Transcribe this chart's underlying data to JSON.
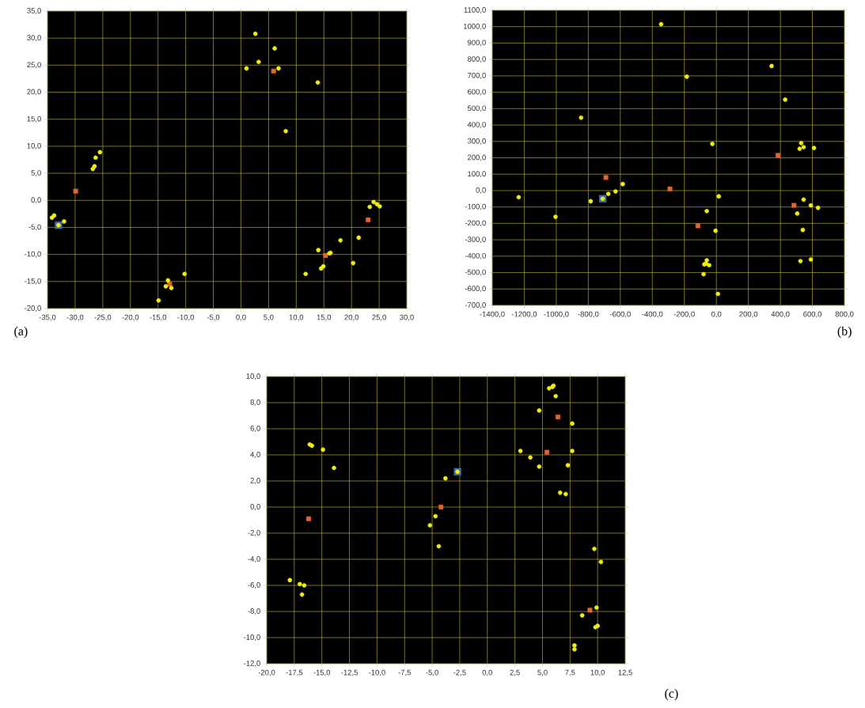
{
  "chart_data": [
    {
      "type": "scatter",
      "annotations": [
        "(a)"
      ],
      "grid": true,
      "xlim": [
        -35,
        30
      ],
      "ylim": [
        -20,
        35
      ],
      "xticks": [
        {
          "value": -35,
          "label": "-35,0"
        },
        {
          "value": -30,
          "label": "-30,0"
        },
        {
          "value": -25,
          "label": "-25,0"
        },
        {
          "value": -20,
          "label": "-20,0"
        },
        {
          "value": -15,
          "label": "-15,0"
        },
        {
          "value": -10,
          "label": "-10,0"
        },
        {
          "value": -5,
          "label": "-5,0"
        },
        {
          "value": 0,
          "label": "0,0"
        },
        {
          "value": 5,
          "label": "5,0"
        },
        {
          "value": 10,
          "label": "10,0"
        },
        {
          "value": 15,
          "label": "15,0"
        },
        {
          "value": 20,
          "label": "20,0"
        },
        {
          "value": 25,
          "label": "25,0"
        },
        {
          "value": 30,
          "label": "30,0"
        }
      ],
      "yticks": [
        {
          "value": -20,
          "label": "-20,0"
        },
        {
          "value": -15,
          "label": "-15,0"
        },
        {
          "value": -10,
          "label": "-10,0"
        },
        {
          "value": -5,
          "label": "-5,0"
        },
        {
          "value": 0,
          "label": "0,0"
        },
        {
          "value": 5,
          "label": "5,0"
        },
        {
          "value": 10,
          "label": "10,0"
        },
        {
          "value": 15,
          "label": "15,0"
        },
        {
          "value": 20,
          "label": "20,0"
        },
        {
          "value": 25,
          "label": "25,0"
        },
        {
          "value": 30,
          "label": "30,0"
        },
        {
          "value": 35,
          "label": "35,0"
        }
      ],
      "series": [
        {
          "color": "#3a6fb0",
          "marker": "square",
          "x": [
            -33.0
          ],
          "values": [
            -4.6
          ]
        },
        {
          "color": "#e8642c",
          "marker": "square",
          "x": [
            -29.9,
            5.9,
            15.3,
            23.0,
            -12.9
          ],
          "values": [
            1.7,
            23.9,
            -10.2,
            -3.6,
            -15.5
          ]
        },
        {
          "color": "#f0f000",
          "marker": "circle",
          "x": [
            -34.2,
            -33.8,
            -33.0,
            -32.0,
            -26.8,
            -26.5,
            -26.3,
            -25.5,
            -14.9,
            -13.6,
            -13.2,
            -12.6,
            -10.2,
            1.0,
            2.6,
            3.2,
            6.1,
            6.8,
            8.1,
            13.9,
            14.0,
            11.7,
            14.5,
            14.9,
            16.0,
            16.2,
            18.0,
            20.3,
            21.3,
            23.3,
            24.0,
            24.6,
            25.1
          ],
          "values": [
            -3.2,
            -2.8,
            -4.6,
            -3.9,
            5.8,
            6.3,
            7.9,
            8.9,
            -18.5,
            -15.9,
            -14.8,
            -16.2,
            -13.6,
            24.4,
            30.8,
            25.6,
            28.1,
            24.4,
            12.8,
            21.8,
            -9.2,
            -13.6,
            -12.6,
            -12.2,
            -9.8,
            -9.7,
            -7.4,
            -11.6,
            -6.9,
            -1.2,
            -0.3,
            -0.7,
            -1.1
          ]
        }
      ]
    },
    {
      "type": "scatter",
      "annotations": [
        "(b)"
      ],
      "grid": true,
      "xlim": [
        -1400,
        800
      ],
      "ylim": [
        -700,
        1100
      ],
      "xticks": [
        {
          "value": -1400,
          "label": "-1400,0"
        },
        {
          "value": -1200,
          "label": "-1200,0"
        },
        {
          "value": -1000,
          "label": "-1000,0"
        },
        {
          "value": -800,
          "label": "-800,0"
        },
        {
          "value": -600,
          "label": "-600,0"
        },
        {
          "value": -400,
          "label": "-400,0"
        },
        {
          "value": -200,
          "label": "-200,0"
        },
        {
          "value": 0,
          "label": "0,0"
        },
        {
          "value": 200,
          "label": "200,0"
        },
        {
          "value": 400,
          "label": "400,0"
        },
        {
          "value": 600,
          "label": "600,0"
        },
        {
          "value": 800,
          "label": "800,0"
        }
      ],
      "yticks": [
        {
          "value": -700,
          "label": "-700,0"
        },
        {
          "value": -600,
          "label": "-600,0"
        },
        {
          "value": -500,
          "label": "-500,0"
        },
        {
          "value": -400,
          "label": "-400,0"
        },
        {
          "value": -300,
          "label": "-300,0"
        },
        {
          "value": -200,
          "label": "-200,0"
        },
        {
          "value": -100,
          "label": "-100,0"
        },
        {
          "value": 0,
          "label": "0,0"
        },
        {
          "value": 100,
          "label": "100,0"
        },
        {
          "value": 200,
          "label": "200,0"
        },
        {
          "value": 300,
          "label": "300,0"
        },
        {
          "value": 400,
          "label": "400,0"
        },
        {
          "value": 500,
          "label": "500,0"
        },
        {
          "value": 600,
          "label": "600,0"
        },
        {
          "value": 700,
          "label": "700,0"
        },
        {
          "value": 800,
          "label": "800,0"
        },
        {
          "value": 900,
          "label": "900,0"
        },
        {
          "value": 1000,
          "label": "1000,0"
        },
        {
          "value": 1100,
          "label": "1100,0"
        }
      ],
      "series": [
        {
          "color": "#3a6fb0",
          "marker": "square",
          "x": [
            -710
          ],
          "values": [
            -50
          ]
        },
        {
          "color": "#e8642c",
          "marker": "square",
          "x": [
            -690,
            -290,
            -115,
            385,
            485
          ],
          "values": [
            80,
            10,
            -215,
            215,
            -90
          ]
        },
        {
          "color": "#f0f000",
          "marker": "circle",
          "x": [
            -1235,
            -1005,
            -845,
            -785,
            -710,
            -675,
            -630,
            -585,
            -345,
            -185,
            -25,
            15,
            -60,
            -5,
            -60,
            -75,
            -65,
            -45,
            -80,
            10,
            345,
            430,
            530,
            520,
            545,
            610,
            545,
            590,
            635,
            505,
            540,
            590,
            525
          ],
          "values": [
            -40,
            -160,
            445,
            -65,
            -50,
            -20,
            -5,
            40,
            1015,
            695,
            285,
            -35,
            -125,
            -245,
            -425,
            -450,
            -445,
            -455,
            -510,
            -630,
            760,
            555,
            290,
            255,
            265,
            260,
            -55,
            -90,
            -105,
            -140,
            -240,
            -420,
            -430
          ]
        }
      ]
    },
    {
      "type": "scatter",
      "annotations": [
        "(c)"
      ],
      "grid": true,
      "xlim": [
        -20,
        12.5
      ],
      "ylim": [
        -12,
        10
      ],
      "xticks": [
        {
          "value": -20,
          "label": "-20,0"
        },
        {
          "value": -17.5,
          "label": "-17,5"
        },
        {
          "value": -15,
          "label": "-15,0"
        },
        {
          "value": -12.5,
          "label": "-12,5"
        },
        {
          "value": -10,
          "label": "-10,0"
        },
        {
          "value": -7.5,
          "label": "-7,5"
        },
        {
          "value": -5,
          "label": "-5,0"
        },
        {
          "value": -2.5,
          "label": "-2,5"
        },
        {
          "value": 0,
          "label": "0,0"
        },
        {
          "value": 2.5,
          "label": "2,5"
        },
        {
          "value": 5,
          "label": "5,0"
        },
        {
          "value": 7.5,
          "label": "7,5"
        },
        {
          "value": 10,
          "label": "10,0"
        },
        {
          "value": 12.5,
          "label": "12,5"
        }
      ],
      "yticks": [
        {
          "value": -12,
          "label": "-12,0"
        },
        {
          "value": -10,
          "label": "-10,0"
        },
        {
          "value": -8,
          "label": "-8,0"
        },
        {
          "value": -6,
          "label": "-6,0"
        },
        {
          "value": -4,
          "label": "-4,0"
        },
        {
          "value": -2,
          "label": "-2,0"
        },
        {
          "value": 0,
          "label": "0,0"
        },
        {
          "value": 2,
          "label": "2,0"
        },
        {
          "value": 4,
          "label": "4,0"
        },
        {
          "value": 6,
          "label": "6,0"
        },
        {
          "value": 8,
          "label": "8,0"
        },
        {
          "value": 10,
          "label": "10,0"
        }
      ],
      "series": [
        {
          "color": "#3a6fb0",
          "marker": "square",
          "x": [
            -2.7
          ],
          "values": [
            2.7
          ]
        },
        {
          "color": "#e8642c",
          "marker": "square",
          "x": [
            -16.2,
            -4.2,
            5.4,
            6.4,
            9.3
          ],
          "values": [
            -0.9,
            0.0,
            4.2,
            6.9,
            -7.9
          ]
        },
        {
          "color": "#f0f000",
          "marker": "circle",
          "x": [
            -17.9,
            -17.0,
            -16.6,
            -16.8,
            -16.1,
            -15.9,
            -14.9,
            -13.9,
            -5.2,
            -4.7,
            -4.4,
            -3.8,
            -2.7,
            3.0,
            3.9,
            4.7,
            4.7,
            5.6,
            5.9,
            6.0,
            6.2,
            6.6,
            7.1,
            7.3,
            7.7,
            7.7,
            7.9,
            7.9,
            8.6,
            9.7,
            9.8,
            10.0,
            9.9,
            10.3
          ],
          "values": [
            -5.6,
            -5.9,
            -6.0,
            -6.7,
            4.8,
            4.7,
            4.4,
            3.0,
            -1.4,
            -0.7,
            -3.0,
            2.2,
            2.7,
            4.3,
            3.8,
            7.4,
            3.1,
            9.1,
            9.2,
            9.3,
            8.5,
            1.1,
            1.0,
            3.2,
            6.4,
            4.3,
            -10.6,
            -10.9,
            -8.3,
            -3.2,
            -9.2,
            -9.1,
            -7.7,
            -4.2
          ]
        }
      ]
    }
  ]
}
